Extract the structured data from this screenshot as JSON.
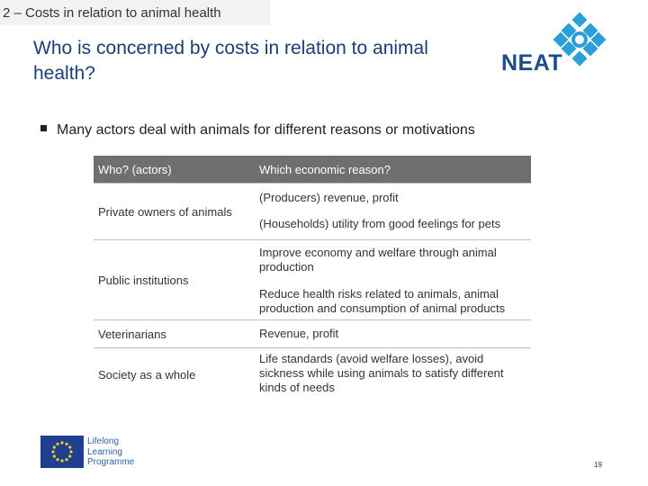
{
  "header": {
    "section_title": "2 – Costs in relation to animal health",
    "title": "Who is concerned by costs in relation to animal health?"
  },
  "logo": {
    "text": "NEAT",
    "mark_color": "#2a9fd8",
    "text_color": "#1d4b8f"
  },
  "bullet": "Many actors deal with animals for different reasons or motivations",
  "table": {
    "headers": [
      "Who? (actors)",
      "Which economic reason?"
    ],
    "rows": [
      {
        "actor": "Private owners of animals",
        "reasons": [
          "(Producers) revenue, profit",
          "(Households) utility from good feelings for pets"
        ]
      },
      {
        "actor": "Public institutions",
        "reasons": [
          "Improve economy and welfare through animal production",
          "Reduce health risks related to animals, animal production and consumption of animal products"
        ]
      },
      {
        "actor": "Veterinarians",
        "reasons": [
          "Revenue, profit"
        ]
      },
      {
        "actor": "Society as a whole",
        "reasons": [
          "Life standards (avoid welfare losses), avoid sickness while using animals to satisfy different kinds of needs"
        ]
      }
    ]
  },
  "footer": {
    "programme_lines": [
      "Lifelong",
      "Learning",
      "Programme"
    ],
    "page_number": "19",
    "flag_icon": "eu-flag-icon"
  }
}
